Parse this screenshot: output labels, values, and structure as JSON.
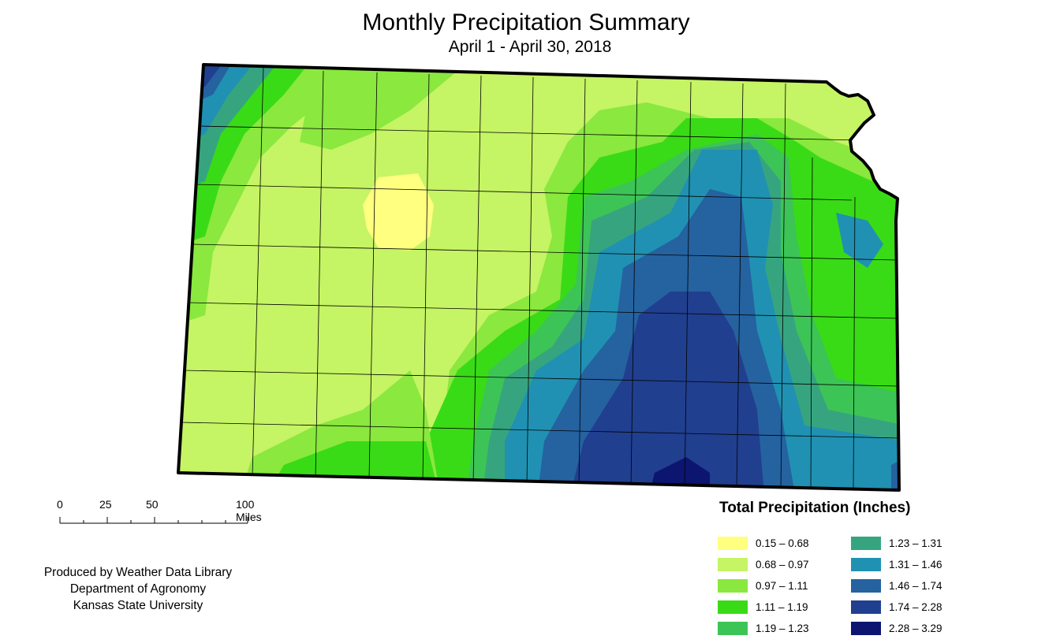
{
  "title": "Monthly Precipitation Summary",
  "subtitle": "April 1 - April 30, 2018",
  "scale_bar": {
    "labels": [
      "0",
      "25",
      "50",
      "100 Miles"
    ]
  },
  "credits": {
    "line1": "Produced by Weather Data Library",
    "line2": "Department of Agronomy",
    "line3": "Kansas State University"
  },
  "legend": {
    "title": "Total Precipitation (Inches)",
    "classes": [
      {
        "range": "0.15 – 0.68",
        "color": "#ffff80"
      },
      {
        "range": "0.68 – 0.97",
        "color": "#c5f464"
      },
      {
        "range": "0.97 – 1.11",
        "color": "#8ae83e"
      },
      {
        "range": "1.11 – 1.19",
        "color": "#39db16"
      },
      {
        "range": "1.19 – 1.23",
        "color": "#3dc456"
      },
      {
        "range": "1.23 – 1.31",
        "color": "#36a57f"
      },
      {
        "range": "1.31 – 1.46",
        "color": "#2091b2"
      },
      {
        "range": "1.46 – 1.74",
        "color": "#2562a0"
      },
      {
        "range": "1.74 – 2.28",
        "color": "#213f8f"
      },
      {
        "range": "2.28 – 3.29",
        "color": "#0c1570"
      }
    ]
  }
}
